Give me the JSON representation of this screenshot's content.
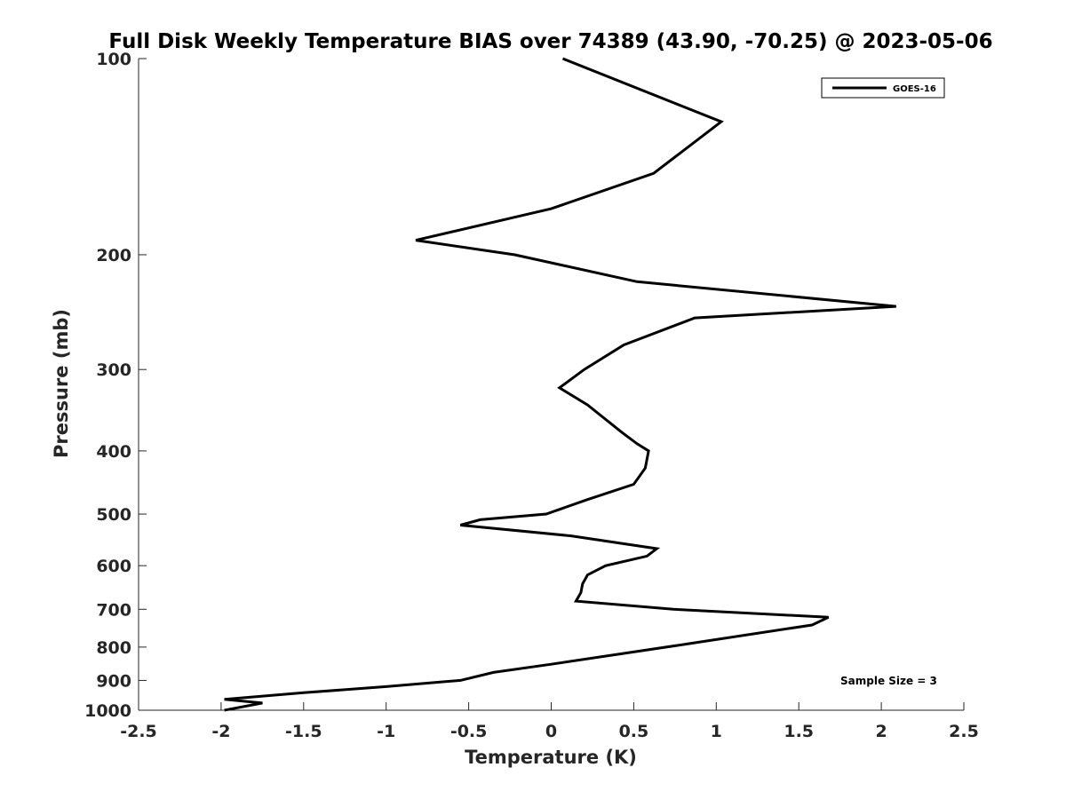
{
  "chart_data": {
    "type": "line",
    "title": "Full Disk Weekly Temperature BIAS over 74389 (43.90, -70.25) @ 2023-05-06",
    "xlabel": "Temperature (K)",
    "ylabel": "Pressure (mb)",
    "xlim": [
      -2.5,
      2.5
    ],
    "ylim": [
      100,
      1000
    ],
    "y_scale": "log",
    "y_reversed": true,
    "x_ticks": [
      -2.5,
      -2,
      -1.5,
      -1,
      -0.5,
      0,
      0.5,
      1,
      1.5,
      2,
      2.5
    ],
    "x_tick_labels": [
      "-2.5",
      "-2",
      "-1.5",
      "-1",
      "-0.5",
      "0",
      "0.5",
      "1",
      "1.5",
      "2",
      "2.5"
    ],
    "y_ticks": [
      100,
      200,
      300,
      400,
      500,
      600,
      700,
      800,
      900,
      1000
    ],
    "y_tick_labels": [
      "100",
      "200",
      "300",
      "400",
      "500",
      "600",
      "700",
      "800",
      "900",
      "1000"
    ],
    "grid": false,
    "legend_position": "top-right",
    "series": [
      {
        "name": "GOES-16",
        "color": "#000000",
        "points": [
          [
            0.07,
            100
          ],
          [
            1.03,
            125
          ],
          [
            0.62,
            150
          ],
          [
            0.0,
            170
          ],
          [
            -0.82,
            190
          ],
          [
            -0.22,
            200
          ],
          [
            0.52,
            220
          ],
          [
            2.09,
            240
          ],
          [
            0.87,
            250
          ],
          [
            0.44,
            275
          ],
          [
            0.2,
            300
          ],
          [
            0.05,
            320
          ],
          [
            0.22,
            340
          ],
          [
            0.43,
            375
          ],
          [
            0.52,
            390
          ],
          [
            0.59,
            400
          ],
          [
            0.57,
            425
          ],
          [
            0.5,
            450
          ],
          [
            0.22,
            475
          ],
          [
            -0.03,
            500
          ],
          [
            -0.43,
            510
          ],
          [
            -0.55,
            520
          ],
          [
            0.12,
            540
          ],
          [
            0.64,
            565
          ],
          [
            0.58,
            580
          ],
          [
            0.33,
            600
          ],
          [
            0.22,
            620
          ],
          [
            0.19,
            640
          ],
          [
            0.18,
            660
          ],
          [
            0.15,
            680
          ],
          [
            0.74,
            700
          ],
          [
            1.68,
            720
          ],
          [
            1.58,
            740
          ],
          [
            0.84,
            790
          ],
          [
            0.0,
            850
          ],
          [
            -0.35,
            875
          ],
          [
            -0.55,
            900
          ],
          [
            -1.0,
            920
          ],
          [
            -1.5,
            940
          ],
          [
            -1.98,
            962
          ],
          [
            -1.75,
            975
          ],
          [
            -1.98,
            1000
          ]
        ]
      }
    ],
    "annotation": "Sample Size = 3"
  }
}
